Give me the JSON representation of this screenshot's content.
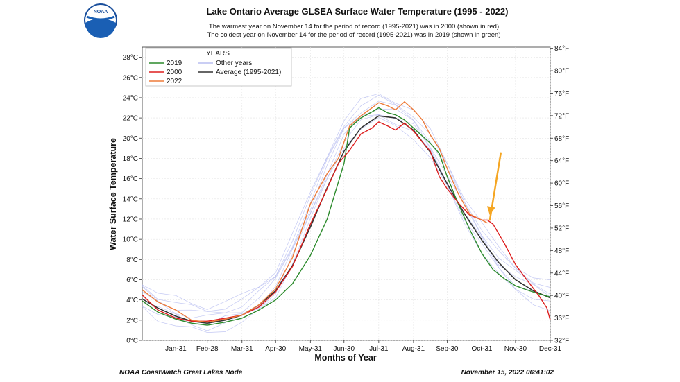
{
  "logo": {
    "text": "NOAA",
    "icon": "noaa-logo-icon"
  },
  "chart_data": {
    "type": "line",
    "title": "Lake Ontario Average GLSEA Surface Water Temperature (1995 - 2022)",
    "subtitle_lines": [
      "The warmest year on November 14 for the period of record (1995-2021) was in 2000 (shown in red)",
      "The coldest year on November 14 for the period of record (1995-2021) was in 2019 (shown in green)"
    ],
    "xlabel": "Months of Year",
    "ylabel": "Water Surface Temperature",
    "xlim": [
      1,
      365
    ],
    "ylim": [
      0,
      29
    ],
    "y_ticks": [
      0,
      2,
      4,
      6,
      8,
      10,
      12,
      14,
      16,
      18,
      20,
      22,
      24,
      26,
      28
    ],
    "y_tick_labels": [
      "0°C",
      "2°C",
      "4°C",
      "6°C",
      "8°C",
      "10°C",
      "12°C",
      "14°C",
      "16°C",
      "18°C",
      "20°C",
      "22°C",
      "24°C",
      "26°C",
      "28°C"
    ],
    "x_ticks": [
      31,
      59,
      90,
      120,
      151,
      181,
      212,
      243,
      273,
      304,
      334,
      365
    ],
    "x_tick_labels": [
      "Jan-31",
      "Feb-28",
      "Mar-31",
      "Apr-30",
      "May-31",
      "Jun-30",
      "Jul-31",
      "Aug-31",
      "Sep-30",
      "Oct-31",
      "Nov-30",
      "Dec-31"
    ],
    "y2_ticks_f": [
      32,
      36,
      40,
      44,
      48,
      52,
      56,
      60,
      64,
      68,
      72,
      76,
      80,
      84
    ],
    "y2_tick_labels": [
      "32°F",
      "36°F",
      "40°F",
      "44°F",
      "48°F",
      "52°F",
      "56°F",
      "60°F",
      "64°F",
      "68°F",
      "72°F",
      "76°F",
      "80°F",
      "84°F"
    ],
    "grid": true,
    "legend_title": "YEARS",
    "legend_position": "top-left",
    "series": [
      {
        "name": "Other years",
        "color": "#aab0ee",
        "width": 0.7,
        "x": [
          1,
          15,
          31,
          45,
          59,
          75,
          90,
          105,
          120,
          135,
          151,
          166,
          181,
          196,
          212,
          227,
          243,
          258,
          273,
          288,
          304,
          319,
          334,
          350,
          365
        ],
        "y": [
          4.4,
          3.4,
          2.7,
          2.2,
          2.0,
          2.4,
          2.9,
          4.0,
          5.6,
          9.0,
          13.0,
          17.0,
          20.5,
          22.2,
          22.9,
          22.4,
          21.4,
          19.2,
          16.2,
          13.0,
          10.1,
          7.6,
          6.0,
          5.0,
          4.3
        ]
      },
      {
        "name": "Average (1995-2021)",
        "color": "#333333",
        "width": 1.6,
        "x": [
          1,
          15,
          31,
          45,
          59,
          75,
          90,
          105,
          120,
          135,
          151,
          166,
          181,
          196,
          212,
          227,
          243,
          258,
          273,
          288,
          304,
          319,
          334,
          350,
          365
        ],
        "y": [
          4.1,
          3.2,
          2.4,
          1.9,
          1.7,
          2.0,
          2.5,
          3.5,
          4.9,
          7.4,
          11.2,
          15.1,
          18.7,
          21.0,
          22.2,
          22.0,
          20.8,
          18.6,
          15.5,
          12.6,
          9.9,
          7.7,
          6.0,
          4.9,
          4.2
        ]
      },
      {
        "name": "2019",
        "color": "#2b8a2b",
        "width": 1.4,
        "x": [
          1,
          15,
          31,
          45,
          59,
          75,
          90,
          105,
          120,
          135,
          151,
          166,
          181,
          186,
          196,
          206,
          212,
          220,
          227,
          235,
          243,
          251,
          258,
          266,
          273,
          283,
          293,
          304,
          314,
          324,
          334,
          344,
          355,
          365
        ],
        "y": [
          3.9,
          2.8,
          2.1,
          1.7,
          1.5,
          1.8,
          2.2,
          3.0,
          4.0,
          5.6,
          8.4,
          12.0,
          17.5,
          21.0,
          22.0,
          22.6,
          23.0,
          22.5,
          22.3,
          21.8,
          21.0,
          20.2,
          19.5,
          18.5,
          16.2,
          13.5,
          11.0,
          8.6,
          7.0,
          6.1,
          5.4,
          5.0,
          4.6,
          4.3
        ]
      },
      {
        "name": "2000",
        "color": "#dd1f1f",
        "width": 1.4,
        "x": [
          1,
          15,
          31,
          45,
          59,
          75,
          90,
          105,
          120,
          135,
          151,
          166,
          176,
          186,
          196,
          206,
          212,
          220,
          227,
          235,
          243,
          251,
          258,
          266,
          273,
          283,
          293,
          304,
          309,
          314,
          324,
          334,
          344,
          355,
          362,
          365
        ],
        "y": [
          4.5,
          3.0,
          2.2,
          1.9,
          1.9,
          2.2,
          2.5,
          3.3,
          4.8,
          7.3,
          11.5,
          15.0,
          17.5,
          18.8,
          20.4,
          21.0,
          21.6,
          21.2,
          20.8,
          21.5,
          20.7,
          19.6,
          18.7,
          16.2,
          15.0,
          13.6,
          12.4,
          11.9,
          11.9,
          11.5,
          9.6,
          7.5,
          6.0,
          4.4,
          3.2,
          2.0
        ]
      },
      {
        "name": "2022",
        "color": "#ee7b3a",
        "width": 1.4,
        "x": [
          1,
          15,
          31,
          45,
          59,
          75,
          90,
          105,
          120,
          135,
          151,
          166,
          176,
          186,
          196,
          206,
          212,
          220,
          227,
          235,
          243,
          251,
          258,
          266,
          273,
          283,
          293,
          304,
          309
        ],
        "y": [
          5.0,
          3.8,
          3.0,
          2.0,
          1.8,
          2.1,
          2.5,
          3.5,
          5.1,
          8.2,
          13.5,
          16.5,
          18.0,
          21.2,
          22.2,
          23.0,
          23.5,
          23.2,
          22.8,
          23.6,
          22.8,
          21.8,
          20.3,
          19.0,
          17.0,
          14.5,
          12.5,
          11.9,
          11.6
        ]
      }
    ],
    "annotation_arrow": {
      "color": "#f5a623",
      "from": [
        321,
        18.6
      ],
      "to": [
        311,
        12.4
      ]
    }
  },
  "footer": {
    "left": "NOAA CoastWatch Great Lakes Node",
    "right": "November 15, 2022 06:41:02"
  }
}
